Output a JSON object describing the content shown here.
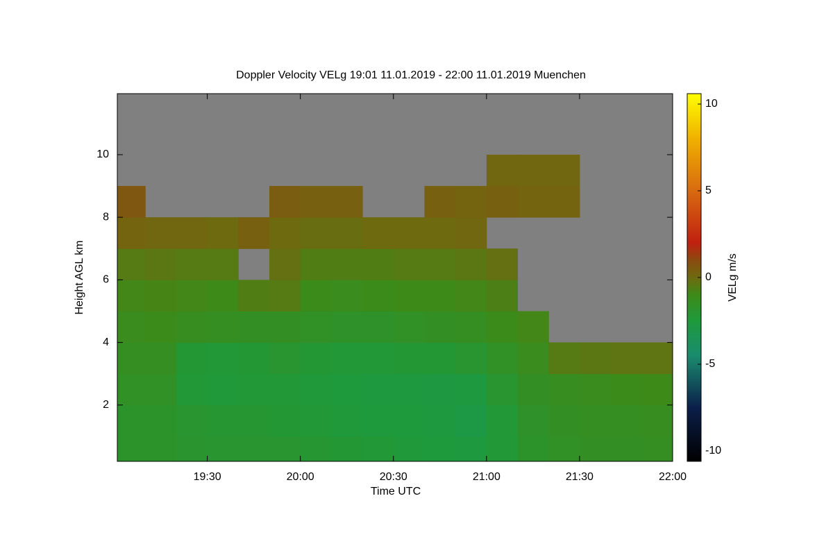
{
  "chart_data": {
    "type": "heatmap",
    "title": "Doppler Velocity VELg   19:01 11.01.2019 - 22:00 11.01.2019 Muenchen",
    "x_label": "Time UTC",
    "y_label": "Height AGL km",
    "colorbar_label": "VELg m/s",
    "x": [
      1141,
      1150,
      1160,
      1170,
      1180,
      1190,
      1200,
      1210,
      1220,
      1230,
      1240,
      1250,
      1260,
      1270,
      1280,
      1290,
      1300,
      1310,
      1320
    ],
    "y": [
      0.2,
      1,
      2,
      3,
      4,
      5,
      6,
      7,
      8,
      9,
      10,
      11,
      12
    ],
    "values": [
      [
        -1.8,
        -1.8,
        -1.9,
        -2,
        -2,
        -2,
        -2.1,
        -2.2,
        -2.3,
        -2.4,
        -2.5,
        -2.6,
        -2.3,
        -1.8,
        -1.6,
        -1.5,
        -1.5,
        -1.4
      ],
      [
        -1.8,
        -1.8,
        -2,
        -2.1,
        -2.1,
        -2.2,
        -2.3,
        -2.4,
        -2.5,
        -2.5,
        -2.6,
        -2.8,
        -2.3,
        -1.7,
        -1.5,
        -1.4,
        -1.4,
        -1.3
      ],
      [
        -1.6,
        -1.6,
        -2.3,
        -2.4,
        -2.3,
        -2.3,
        -2.4,
        -2.5,
        -2.6,
        -2.6,
        -2.7,
        -2.6,
        -2,
        -1.5,
        -1.3,
        -1.2,
        -1.1,
        -1
      ],
      [
        -1.4,
        -1.4,
        -2.2,
        -2.3,
        -2.2,
        -2,
        -2.2,
        -2.3,
        -2.3,
        -2.2,
        -2.2,
        -2,
        -1.6,
        -1.2,
        -0.5,
        -0.4,
        -0.3,
        -0.3
      ],
      [
        -1.2,
        -1.1,
        -1.3,
        -1.4,
        -1.5,
        -1.5,
        -1.6,
        -1.7,
        -1.7,
        -1.6,
        -1.5,
        -1.4,
        -1.1,
        -0.9,
        null,
        null,
        null,
        null
      ],
      [
        -0.9,
        -0.8,
        -0.9,
        -1,
        -0.6,
        -0.5,
        -1.1,
        -1.2,
        -1.1,
        -1,
        -1,
        -0.9,
        -0.7,
        null,
        null,
        null,
        null,
        null
      ],
      [
        -0.5,
        -0.4,
        -0.5,
        -0.5,
        null,
        -0.2,
        -0.6,
        -0.6,
        -0.6,
        -0.5,
        -0.5,
        -0.4,
        -0.2,
        null,
        null,
        null,
        null,
        null
      ],
      [
        0.2,
        0.1,
        0.1,
        0,
        0.3,
        0,
        -0.1,
        -0.1,
        0,
        0,
        0,
        0.1,
        null,
        null,
        null,
        null,
        null,
        null
      ],
      [
        0.6,
        null,
        null,
        null,
        null,
        0.4,
        0.3,
        0.3,
        null,
        null,
        0.3,
        0.2,
        0.3,
        0.2,
        0.2,
        null,
        null,
        null
      ],
      [
        null,
        null,
        null,
        null,
        null,
        null,
        null,
        null,
        null,
        null,
        null,
        null,
        0.1,
        0.1,
        0.1,
        null,
        null,
        null
      ],
      [
        null,
        null,
        null,
        null,
        null,
        null,
        null,
        null,
        null,
        null,
        null,
        null,
        null,
        null,
        null,
        null,
        null,
        null
      ],
      [
        null,
        null,
        null,
        null,
        null,
        null,
        null,
        null,
        null,
        null,
        null,
        null,
        null,
        null,
        null,
        null,
        null,
        null
      ]
    ],
    "nodata_color": "#808080",
    "xlim": [
      1141,
      1320
    ],
    "xticks": [
      {
        "value": 1170,
        "label": "19:30"
      },
      {
        "value": 1200,
        "label": "20:00"
      },
      {
        "value": 1230,
        "label": "20:30"
      },
      {
        "value": 1260,
        "label": "21:00"
      },
      {
        "value": 1290,
        "label": "21:30"
      },
      {
        "value": 1320,
        "label": "22:00"
      }
    ],
    "ylim": [
      0.2,
      11.95
    ],
    "yticks": [
      2,
      4,
      6,
      8,
      10
    ],
    "clim": [
      -10.6,
      10.6
    ],
    "cticks": [
      -10,
      -5,
      0,
      5,
      10
    ],
    "colorscale": [
      {
        "value": -10.6,
        "color": "#000000"
      },
      {
        "value": -7.5,
        "color": "#0b1f4a"
      },
      {
        "value": -4.5,
        "color": "#1a8c6e"
      },
      {
        "value": -2.5,
        "color": "#1e9a3c"
      },
      {
        "value": -1,
        "color": "#3d8a18"
      },
      {
        "value": 0,
        "color": "#6e6a10"
      },
      {
        "value": 1,
        "color": "#8b4a10"
      },
      {
        "value": 2,
        "color": "#c02010"
      },
      {
        "value": 5,
        "color": "#d86a10"
      },
      {
        "value": 8,
        "color": "#f0b000"
      },
      {
        "value": 10.6,
        "color": "#ffff00"
      }
    ]
  }
}
